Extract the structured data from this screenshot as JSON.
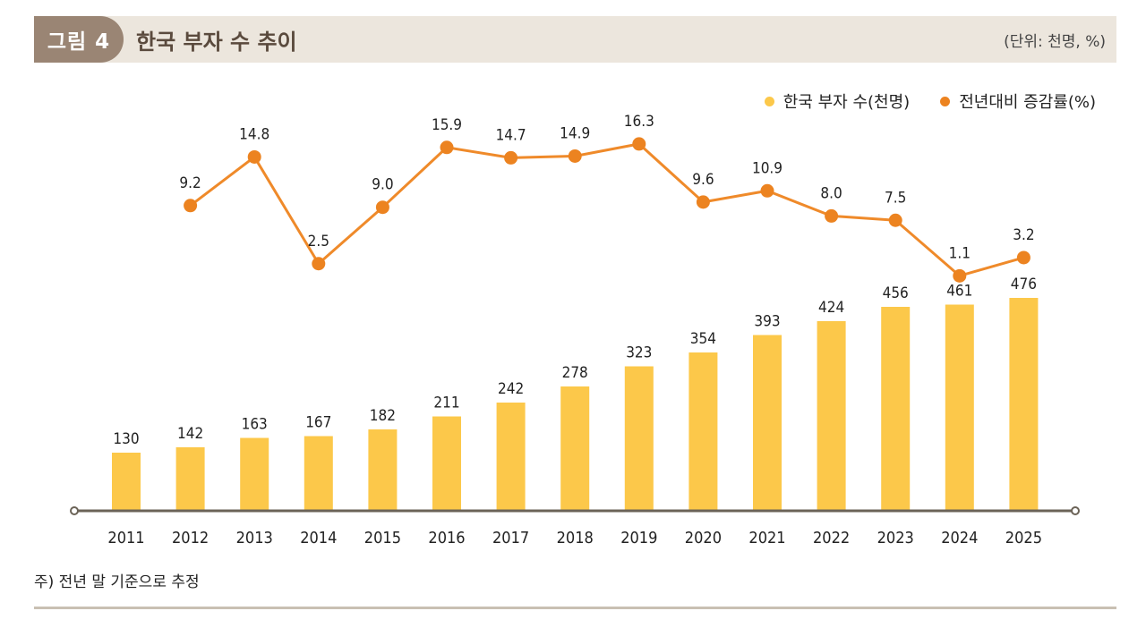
{
  "header": {
    "figure_label": "그림 4",
    "title": "한국 부자 수 추이",
    "unit": "(단위: 천명, %)"
  },
  "legend": {
    "bar_label": "한국 부자 수(천명)",
    "line_label": "전년대비 증감률(%)"
  },
  "colors": {
    "bar": "#fcc84a",
    "line": "#ef8a2a",
    "marker": "#ec8320",
    "axis": "#6b6357"
  },
  "chart_data": {
    "type": "bar+line",
    "title": "한국 부자 수 추이",
    "categories": [
      "2011",
      "2012",
      "2013",
      "2014",
      "2015",
      "2016",
      "2017",
      "2018",
      "2019",
      "2020",
      "2021",
      "2022",
      "2023",
      "2024",
      "2025"
    ],
    "series": [
      {
        "name": "한국 부자 수(천명)",
        "type": "bar",
        "values": [
          130,
          142,
          163,
          167,
          182,
          211,
          242,
          278,
          323,
          354,
          393,
          424,
          456,
          461,
          476
        ],
        "labels": [
          "130",
          "142",
          "163",
          "167",
          "182",
          "211",
          "242",
          "278",
          "323",
          "354",
          "393",
          "424",
          "456",
          "461",
          "476"
        ]
      },
      {
        "name": "전년대비 증감률(%)",
        "type": "line",
        "values": [
          null,
          9.2,
          14.8,
          2.5,
          9.0,
          15.9,
          14.7,
          14.9,
          16.3,
          9.6,
          10.9,
          8.0,
          7.5,
          1.1,
          3.2
        ],
        "labels": [
          "",
          "9.2",
          "14.8",
          "2.5",
          "9.0",
          "15.9",
          "14.7",
          "14.9",
          "16.3",
          "9.6",
          "10.9",
          "8.0",
          "7.5",
          "1.1",
          "3.2"
        ]
      }
    ],
    "xlabel": "",
    "ylabel": ""
  },
  "footnote": "주) 전년 말 기준으로 추정"
}
